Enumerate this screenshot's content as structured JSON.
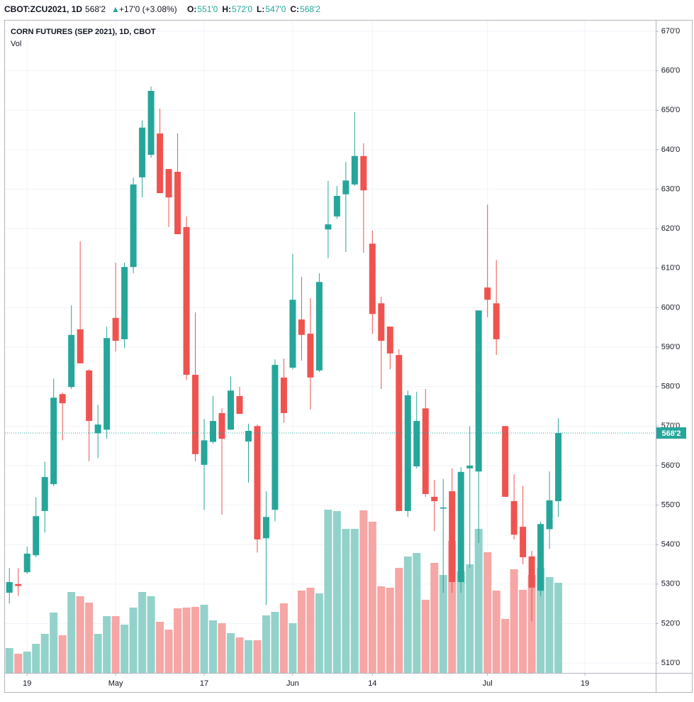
{
  "header": {
    "symbol": "CBOT:ZCU2021, 1D",
    "last": "568'2",
    "arrow": "▲",
    "change": "+17'0 (+3.08%)",
    "ohlc": [
      {
        "label": "O:",
        "value": "551'0"
      },
      {
        "label": "H:",
        "value": "572'0"
      },
      {
        "label": "L:",
        "value": "547'0"
      },
      {
        "label": "C:",
        "value": "568'2"
      }
    ]
  },
  "chart_data": {
    "type": "candlestick",
    "title": "CORN FUTURES (SEP 2021), 1D, CBOT",
    "volume_label": "Vol",
    "up_color": "#26a69a",
    "down_color": "#ef5350",
    "up_volume_color": "#93d2ca",
    "down_volume_color": "#f5a6a5",
    "open": [
      527.8,
      530,
      533.0,
      537.3,
      548.5,
      555.3,
      578.1,
      579.9,
      594.5,
      584.1,
      568.2,
      569.1,
      597.4,
      592.0,
      610.3,
      633.0,
      638.7,
      644.1,
      635.1,
      634.4,
      620.4,
      583.0,
      560.2,
      566.0,
      573.3,
      569.1,
      577.6,
      566.1,
      570.0,
      541.6,
      548.8,
      582.3,
      584.8,
      597.0,
      593.4,
      584.1,
      619.8,
      623.1,
      628.7,
      631.2,
      638.4,
      616.2,
      601.1,
      595.2,
      588.0,
      548.5,
      559.8,
      574.5,
      552.1,
      549.1,
      553.5,
      530.5,
      559.3,
      558.5,
      605.1,
      601.1,
      570.0,
      551.0,
      544.5,
      537.0,
      528.3,
      543.9,
      551
    ],
    "high": [
      534.1,
      534,
      539.5,
      552,
      561,
      582,
      578.5,
      600.6,
      616.8,
      584.4,
      575.4,
      595.2,
      611.4,
      611.4,
      633.0,
      647.4,
      656.0,
      650.4,
      635.1,
      644.1,
      623.1,
      598.8,
      571.8,
      577.6,
      574.5,
      582.6,
      579.9,
      570.6,
      570.4,
      553.5,
      586.9,
      587.1,
      613.6,
      607.8,
      602.4,
      608.7,
      632.1,
      630.8,
      636.9,
      649.5,
      641.6,
      619.5,
      602.8,
      595.2,
      589.5,
      579.0,
      578.7,
      579.4,
      556.4,
      556.6,
      559.3,
      559.6,
      570.0,
      599.3,
      626.1,
      612.1,
      570.0,
      557.8,
      554.8,
      538.4,
      545.8,
      558.5,
      572
    ],
    "low": [
      525.1,
      527,
      532.6,
      536.8,
      543,
      554.8,
      566.4,
      579.4,
      585.9,
      561.1,
      561.9,
      566.8,
      588.9,
      589.8,
      608.7,
      627.9,
      638.0,
      629.0,
      620.4,
      618.6,
      581.7,
      561.1,
      548.8,
      565.6,
      547.6,
      569.1,
      573.1,
      555.7,
      538.0,
      524.7,
      545.9,
      570.9,
      584.4,
      586.6,
      574.2,
      583.7,
      612.5,
      622.5,
      614.1,
      630.8,
      613.9,
      593.4,
      579.4,
      584.4,
      548.5,
      547.0,
      559.3,
      552.1,
      543.4,
      527.8,
      527.8,
      527.8,
      534.1,
      540.4,
      597.6,
      588.0,
      552.1,
      541.3,
      535.0,
      520.6,
      526.9,
      538.9,
      547
    ],
    "close": [
      530.5,
      529.5,
      537.7,
      547.2,
      557.1,
      577.2,
      575.8,
      593.1,
      585.9,
      571.3,
      570.4,
      592.3,
      591.6,
      610.3,
      631.2,
      645.6,
      654.9,
      629.0,
      627.9,
      618.6,
      583.0,
      562.9,
      566.4,
      571.3,
      566.8,
      579.0,
      573.1,
      568.8,
      541.3,
      547.0,
      585.5,
      573.3,
      602.0,
      593.1,
      582.3,
      606.5,
      621.1,
      628.3,
      632.2,
      638.4,
      629.7,
      598.4,
      591.6,
      588.4,
      548.5,
      577.8,
      571.3,
      552.8,
      551.0,
      549.4,
      530.5,
      558.4,
      560.0,
      599.3,
      602.0,
      592.0,
      552.1,
      542.5,
      536.8,
      529.1,
      545.2,
      551.2,
      568.25
    ],
    "volume": [
      35,
      27,
      30,
      41,
      55,
      85,
      53,
      114,
      108,
      99,
      55,
      80,
      80,
      68,
      92,
      114,
      108,
      72,
      61,
      91,
      92,
      93,
      96,
      74,
      70,
      56,
      50,
      46,
      46,
      81,
      86,
      98,
      70,
      116,
      120,
      112,
      230,
      228,
      203,
      203,
      229,
      213,
      122,
      120,
      148,
      164,
      169,
      103,
      155,
      138,
      186,
      143,
      153,
      203,
      170,
      116,
      76,
      146,
      117,
      138,
      148,
      135,
      127
    ],
    "last_price": {
      "value": 568.25,
      "label": "568'2"
    },
    "xlim": [
      -0.5,
      73
    ],
    "xticks": [
      {
        "value": 2,
        "label": "19"
      },
      {
        "value": 12,
        "label": "May"
      },
      {
        "value": 22,
        "label": "17"
      },
      {
        "value": 32,
        "label": "Jun"
      },
      {
        "value": 41,
        "label": "14"
      },
      {
        "value": 54,
        "label": "Jul"
      },
      {
        "value": 65,
        "label": "19"
      }
    ],
    "ylim": [
      507.5,
      672.7
    ],
    "yticks": [
      {
        "value": 510,
        "label": "510'0"
      },
      {
        "value": 520,
        "label": "520'0"
      },
      {
        "value": 530,
        "label": "530'0"
      },
      {
        "value": 540,
        "label": "540'0"
      },
      {
        "value": 550,
        "label": "550'0"
      },
      {
        "value": 560,
        "label": "560'0"
      },
      {
        "value": 570,
        "label": "570'0"
      },
      {
        "value": 580,
        "label": "580'0"
      },
      {
        "value": 590,
        "label": "590'0"
      },
      {
        "value": 600,
        "label": "600'0"
      },
      {
        "value": 610,
        "label": "610'0"
      },
      {
        "value": 620,
        "label": "620'0"
      },
      {
        "value": 630,
        "label": "630'0"
      },
      {
        "value": 640,
        "label": "640'0"
      },
      {
        "value": 650,
        "label": "650'0"
      },
      {
        "value": 660,
        "label": "660'0"
      },
      {
        "value": 670,
        "label": "670'0"
      }
    ],
    "grid": true
  }
}
